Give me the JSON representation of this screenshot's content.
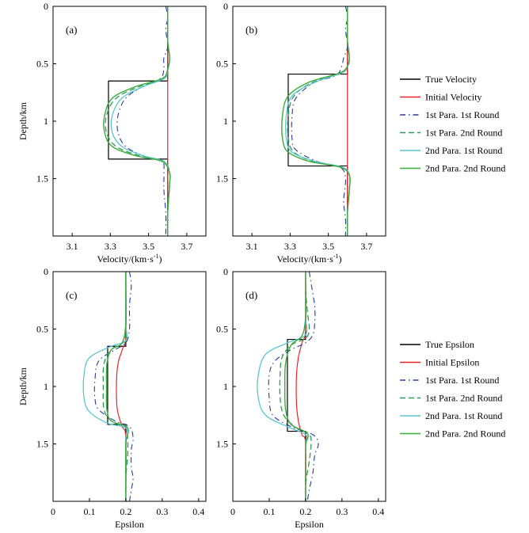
{
  "colors": {
    "true_line": "#000000",
    "initial_line": "#e8262a",
    "p1r1": "#2a3a9c",
    "p1r2": "#2e9a55",
    "p2r1": "#5cc6cf",
    "p2r2": "#3aaa3a",
    "axis": "#000000"
  },
  "legends": {
    "velocity": {
      "entries": [
        {
          "key": "true",
          "label": "True Velocity"
        },
        {
          "key": "initial",
          "label": "Initial Velocity"
        },
        {
          "key": "p1r1",
          "label": "1st Para. 1st Round"
        },
        {
          "key": "p1r2",
          "label": "1st Para. 2nd Round"
        },
        {
          "key": "p2r1",
          "label": "2nd Para. 1st Round"
        },
        {
          "key": "p2r2",
          "label": "2nd Para. 2nd Round"
        }
      ]
    },
    "epsilon": {
      "entries": [
        {
          "key": "true",
          "label": "True Epsilon"
        },
        {
          "key": "initial",
          "label": "Initial Epsilon"
        },
        {
          "key": "p1r1",
          "label": "1st Para. 1st Round"
        },
        {
          "key": "p1r2",
          "label": "1st Para. 2nd Round"
        },
        {
          "key": "p2r1",
          "label": "2nd Para. 1st Round"
        },
        {
          "key": "p2r2",
          "label": "2nd Para. 2nd Round"
        }
      ]
    }
  },
  "chart_data": [
    {
      "type": "line",
      "panel": "(a)",
      "xlabel": "Velocity/(km·s",
      "xlabel_sup": "-1",
      "xlabel_close": ")",
      "ylabel": "Depth/km",
      "xlim": [
        3.0,
        3.8
      ],
      "ylim": [
        2.0,
        0.0
      ],
      "xticks": [
        3.1,
        3.3,
        3.5,
        3.7
      ],
      "xtick_labels": [
        "3.1",
        "3.3",
        "3.5",
        "3.7"
      ],
      "yticks": [
        0,
        0.5,
        1,
        1.5
      ],
      "ytick_labels": [
        "0",
        "0.5",
        "1",
        "1.5"
      ],
      "series": [
        {
          "key": "true",
          "name": "True Velocity",
          "x": [
            3.6,
            3.6,
            3.29,
            3.29,
            3.6,
            3.6
          ],
          "depth": [
            0,
            0.65,
            0.65,
            1.33,
            1.33,
            2.0
          ]
        },
        {
          "key": "initial",
          "name": "Initial Velocity",
          "x": [
            3.6,
            3.6
          ],
          "depth": [
            0,
            2.0
          ]
        },
        {
          "key": "p1r1",
          "name": "1st Para. 1st Round",
          "x": [
            3.59,
            3.6,
            3.59,
            3.6,
            3.58,
            3.58,
            3.56,
            3.47,
            3.38,
            3.34,
            3.34,
            3.38,
            3.47,
            3.57,
            3.58,
            3.58,
            3.59,
            3.59
          ],
          "depth": [
            0,
            0.1,
            0.2,
            0.35,
            0.45,
            0.55,
            0.63,
            0.7,
            0.8,
            0.95,
            1.1,
            1.22,
            1.3,
            1.35,
            1.45,
            1.6,
            1.8,
            2.0
          ]
        },
        {
          "key": "p1r2",
          "name": "1st Para. 2nd Round",
          "x": [
            3.6,
            3.6,
            3.6,
            3.61,
            3.6,
            3.58,
            3.45,
            3.33,
            3.28,
            3.28,
            3.33,
            3.45,
            3.58,
            3.61,
            3.61,
            3.6,
            3.6
          ],
          "depth": [
            0,
            0.15,
            0.3,
            0.45,
            0.55,
            0.63,
            0.7,
            0.8,
            0.95,
            1.1,
            1.22,
            1.3,
            1.35,
            1.45,
            1.55,
            1.8,
            2.0
          ]
        },
        {
          "key": "p2r1",
          "name": "2nd Para. 1st Round",
          "x": [
            3.6,
            3.6,
            3.6,
            3.61,
            3.6,
            3.58,
            3.47,
            3.36,
            3.31,
            3.31,
            3.36,
            3.47,
            3.58,
            3.61,
            3.61,
            3.6,
            3.6
          ],
          "depth": [
            0,
            0.15,
            0.3,
            0.45,
            0.55,
            0.63,
            0.7,
            0.8,
            0.95,
            1.1,
            1.22,
            1.3,
            1.35,
            1.45,
            1.55,
            1.8,
            2.0
          ]
        },
        {
          "key": "p2r2",
          "name": "2nd Para. 2nd Round",
          "x": [
            3.6,
            3.6,
            3.6,
            3.61,
            3.6,
            3.57,
            3.43,
            3.31,
            3.27,
            3.27,
            3.31,
            3.43,
            3.57,
            3.61,
            3.61,
            3.6,
            3.6
          ],
          "depth": [
            0,
            0.15,
            0.3,
            0.45,
            0.55,
            0.63,
            0.7,
            0.8,
            0.95,
            1.1,
            1.22,
            1.3,
            1.35,
            1.45,
            1.55,
            1.8,
            2.0
          ]
        }
      ]
    },
    {
      "type": "line",
      "panel": "(b)",
      "xlabel": "Velocity/(km·s",
      "xlabel_sup": "-1",
      "xlabel_close": ")",
      "ylabel": "",
      "xlim": [
        3.0,
        3.8
      ],
      "ylim": [
        2.0,
        0.0
      ],
      "xticks": [
        3.1,
        3.3,
        3.5,
        3.7
      ],
      "xtick_labels": [
        "3.1",
        "3.3",
        "3.5",
        "3.7"
      ],
      "yticks": [
        0,
        0.5,
        1,
        1.5
      ],
      "ytick_labels": [
        "0",
        "0.5",
        "1",
        "1.5"
      ],
      "series": [
        {
          "key": "true",
          "name": "True Velocity",
          "x": [
            3.6,
            3.6,
            3.29,
            3.29,
            3.6,
            3.6
          ],
          "depth": [
            0,
            0.59,
            0.59,
            1.39,
            1.39,
            2.0
          ]
        },
        {
          "key": "initial",
          "name": "Initial Velocity",
          "x": [
            3.6,
            3.6
          ],
          "depth": [
            0,
            2.0
          ]
        },
        {
          "key": "p1r1",
          "name": "1st Para. 1st Round",
          "x": [
            3.59,
            3.6,
            3.59,
            3.6,
            3.58,
            3.57,
            3.54,
            3.42,
            3.33,
            3.31,
            3.31,
            3.33,
            3.44,
            3.56,
            3.59,
            3.58,
            3.59,
            3.59
          ],
          "depth": [
            0,
            0.1,
            0.2,
            0.35,
            0.45,
            0.52,
            0.6,
            0.67,
            0.8,
            0.95,
            1.15,
            1.25,
            1.35,
            1.4,
            1.5,
            1.7,
            1.85,
            2.0
          ]
        },
        {
          "key": "p1r2",
          "name": "1st Para. 2nd Round",
          "x": [
            3.6,
            3.6,
            3.6,
            3.61,
            3.6,
            3.57,
            3.42,
            3.32,
            3.29,
            3.29,
            3.32,
            3.42,
            3.57,
            3.61,
            3.61,
            3.6,
            3.6
          ],
          "depth": [
            0,
            0.15,
            0.3,
            0.45,
            0.52,
            0.58,
            0.66,
            0.78,
            0.95,
            1.15,
            1.27,
            1.35,
            1.4,
            1.47,
            1.6,
            1.8,
            2.0
          ]
        },
        {
          "key": "p2r1",
          "name": "2nd Para. 1st Round",
          "x": [
            3.6,
            3.6,
            3.6,
            3.61,
            3.6,
            3.57,
            3.43,
            3.31,
            3.28,
            3.28,
            3.31,
            3.43,
            3.57,
            3.61,
            3.61,
            3.6,
            3.6
          ],
          "depth": [
            0,
            0.15,
            0.3,
            0.45,
            0.52,
            0.58,
            0.66,
            0.78,
            0.95,
            1.15,
            1.27,
            1.35,
            1.4,
            1.47,
            1.6,
            1.8,
            2.0
          ]
        },
        {
          "key": "p2r2",
          "name": "2nd Para. 2nd Round",
          "x": [
            3.6,
            3.6,
            3.6,
            3.61,
            3.6,
            3.56,
            3.4,
            3.29,
            3.26,
            3.26,
            3.29,
            3.4,
            3.56,
            3.61,
            3.61,
            3.6,
            3.6
          ],
          "depth": [
            0,
            0.15,
            0.3,
            0.45,
            0.52,
            0.58,
            0.66,
            0.78,
            0.95,
            1.15,
            1.27,
            1.35,
            1.4,
            1.47,
            1.6,
            1.8,
            2.0
          ]
        }
      ]
    },
    {
      "type": "line",
      "panel": "(c)",
      "xlabel": "Epsilon",
      "ylabel": "Depth/km",
      "xlim": [
        0.0,
        0.42
      ],
      "ylim": [
        2.0,
        0.0
      ],
      "xticks": [
        0,
        0.1,
        0.2,
        0.3,
        0.4
      ],
      "xtick_labels": [
        "0",
        "0.1",
        "0.2",
        "0.3",
        "0.4"
      ],
      "yticks": [
        0,
        0.5,
        1,
        1.5
      ],
      "ytick_labels": [
        "0",
        "0.5",
        "1",
        "1.5"
      ],
      "series": [
        {
          "key": "true",
          "name": "True Epsilon",
          "x": [
            0.2,
            0.2,
            0.15,
            0.15,
            0.2,
            0.2
          ],
          "depth": [
            0,
            0.65,
            0.65,
            1.33,
            1.33,
            2.0
          ]
        },
        {
          "key": "initial",
          "name": "Initial Epsilon",
          "x": [
            0.2,
            0.2,
            0.19,
            0.18,
            0.175,
            0.175,
            0.18,
            0.19,
            0.2,
            0.2
          ],
          "depth": [
            0,
            0.55,
            0.68,
            0.78,
            0.9,
            1.15,
            1.25,
            1.35,
            1.45,
            2.0
          ]
        },
        {
          "key": "p1r1",
          "name": "1st Para. 1st Round",
          "x": [
            0.21,
            0.215,
            0.21,
            0.21,
            0.2,
            0.17,
            0.125,
            0.115,
            0.115,
            0.125,
            0.17,
            0.21,
            0.22,
            0.215,
            0.215,
            0.22,
            0.215,
            0.21
          ],
          "depth": [
            0,
            0.12,
            0.3,
            0.5,
            0.62,
            0.68,
            0.78,
            0.95,
            1.1,
            1.2,
            1.3,
            1.35,
            1.45,
            1.55,
            1.7,
            1.8,
            1.9,
            2.0
          ]
        },
        {
          "key": "p1r2",
          "name": "1st Para. 2nd Round",
          "x": [
            0.2,
            0.2,
            0.2,
            0.195,
            0.16,
            0.14,
            0.138,
            0.14,
            0.16,
            0.2,
            0.205,
            0.205,
            0.2,
            0.2
          ],
          "depth": [
            0,
            0.2,
            0.45,
            0.6,
            0.68,
            0.8,
            1.0,
            1.2,
            1.3,
            1.36,
            1.45,
            1.6,
            1.8,
            2.0
          ]
        },
        {
          "key": "p2r1",
          "name": "2nd Para. 1st Round",
          "x": [
            0.2,
            0.2,
            0.2,
            0.2,
            0.16,
            0.1,
            0.085,
            0.085,
            0.1,
            0.15,
            0.2,
            0.2,
            0.2,
            0.2
          ],
          "depth": [
            0,
            0.2,
            0.45,
            0.6,
            0.65,
            0.75,
            0.9,
            1.1,
            1.22,
            1.32,
            1.36,
            1.45,
            1.7,
            2.0
          ]
        },
        {
          "key": "p2r2",
          "name": "2nd Para. 2nd Round",
          "x": [
            0.2,
            0.2,
            0.2,
            0.19,
            0.16,
            0.148,
            0.147,
            0.148,
            0.16,
            0.205,
            0.2,
            0.2,
            0.2
          ],
          "depth": [
            0,
            0.2,
            0.45,
            0.62,
            0.68,
            0.8,
            1.0,
            1.2,
            1.3,
            1.36,
            1.5,
            1.8,
            2.0
          ]
        }
      ]
    },
    {
      "type": "line",
      "panel": "(d)",
      "xlabel": "Epsilon",
      "ylabel": "",
      "xlim": [
        0.0,
        0.42
      ],
      "ylim": [
        2.0,
        0.0
      ],
      "xticks": [
        0,
        0.1,
        0.2,
        0.3,
        0.4
      ],
      "xtick_labels": [
        "0",
        "0.1",
        "0.2",
        "0.3",
        "0.4"
      ],
      "yticks": [
        0,
        0.5,
        1,
        1.5
      ],
      "ytick_labels": [
        "0",
        "0.5",
        "1",
        "1.5"
      ],
      "series": [
        {
          "key": "true",
          "name": "True Epsilon",
          "x": [
            0.2,
            0.2,
            0.15,
            0.15,
            0.2,
            0.2
          ],
          "depth": [
            0,
            0.59,
            0.59,
            1.39,
            1.39,
            2.0
          ]
        },
        {
          "key": "initial",
          "name": "Initial Epsilon",
          "x": [
            0.2,
            0.2,
            0.19,
            0.18,
            0.175,
            0.175,
            0.18,
            0.19,
            0.2,
            0.2
          ],
          "depth": [
            0,
            0.5,
            0.62,
            0.75,
            0.9,
            1.15,
            1.3,
            1.42,
            1.5,
            2.0
          ]
        },
        {
          "key": "p1r1",
          "name": "1st Para. 1st Round",
          "x": [
            0.21,
            0.215,
            0.225,
            0.225,
            0.22,
            0.2,
            0.16,
            0.115,
            0.1,
            0.1,
            0.11,
            0.16,
            0.22,
            0.235,
            0.225,
            0.22,
            0.21,
            0.205
          ],
          "depth": [
            0,
            0.1,
            0.3,
            0.45,
            0.55,
            0.62,
            0.68,
            0.78,
            0.9,
            1.1,
            1.25,
            1.35,
            1.42,
            1.5,
            1.6,
            1.75,
            1.9,
            2.0
          ]
        },
        {
          "key": "p1r2",
          "name": "1st Para. 2nd Round",
          "x": [
            0.2,
            0.2,
            0.205,
            0.21,
            0.2,
            0.16,
            0.135,
            0.13,
            0.13,
            0.14,
            0.17,
            0.21,
            0.215,
            0.21,
            0.2,
            0.2
          ],
          "depth": [
            0,
            0.15,
            0.35,
            0.5,
            0.58,
            0.64,
            0.75,
            0.9,
            1.1,
            1.25,
            1.35,
            1.42,
            1.5,
            1.65,
            1.85,
            2.0
          ]
        },
        {
          "key": "p2r1",
          "name": "2nd Para. 1st Round",
          "x": [
            0.2,
            0.2,
            0.2,
            0.2,
            0.15,
            0.09,
            0.07,
            0.07,
            0.09,
            0.15,
            0.2,
            0.2,
            0.2,
            0.2
          ],
          "depth": [
            0,
            0.2,
            0.4,
            0.55,
            0.62,
            0.72,
            0.9,
            1.1,
            1.25,
            1.35,
            1.42,
            1.5,
            1.7,
            2.0
          ]
        },
        {
          "key": "p2r2",
          "name": "2nd Para. 2nd Round",
          "x": [
            0.2,
            0.2,
            0.2,
            0.19,
            0.16,
            0.145,
            0.143,
            0.145,
            0.16,
            0.205,
            0.2,
            0.2,
            0.2
          ],
          "depth": [
            0,
            0.2,
            0.4,
            0.56,
            0.64,
            0.8,
            1.0,
            1.2,
            1.33,
            1.41,
            1.52,
            1.8,
            2.0
          ]
        }
      ]
    }
  ]
}
